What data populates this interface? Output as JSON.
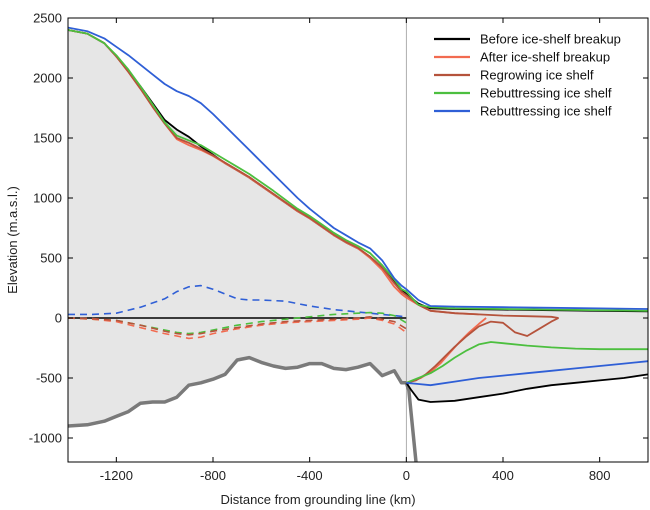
{
  "chart_data": {
    "type": "line",
    "title": "",
    "xlabel": "Distance from grounding line (km)",
    "ylabel": "Elevation (m.a.s.l.)",
    "xlim": [
      -1400,
      1000
    ],
    "ylim": [
      -1200,
      2500
    ],
    "xticks": [
      -1200,
      -800,
      -400,
      0,
      400,
      800
    ],
    "yticks": [
      -1000,
      -500,
      0,
      500,
      1000,
      1500,
      2000,
      2500
    ],
    "grid": false,
    "legend_position": "top-right",
    "colors": {
      "before": "#000000",
      "after": "#f26b50",
      "regrowing": "#b5533c",
      "rebuttressing_green": "#4cbf3f",
      "rebuttressing_blue": "#2f5fd6",
      "bed": "#7a7a7a",
      "fill": "#e6e6e6"
    },
    "legend": [
      {
        "name": "Before ice-shelf breakup",
        "color": "#000000"
      },
      {
        "name": "After ice-shelf breakup",
        "color": "#f26b50"
      },
      {
        "name": "Regrowing ice shelf",
        "color": "#b5533c"
      },
      {
        "name": "Rebuttressing ice shelf",
        "color": "#4cbf3f"
      },
      {
        "name": "Rebuttressing ice shelf",
        "color": "#2f5fd6"
      }
    ],
    "bedrock": {
      "x": [
        -1400,
        -1320,
        -1250,
        -1200,
        -1150,
        -1100,
        -1050,
        -1000,
        -950,
        -900,
        -850,
        -800,
        -750,
        -700,
        -650,
        -600,
        -550,
        -500,
        -450,
        -400,
        -350,
        -300,
        -250,
        -200,
        -150,
        -100,
        -50,
        -20,
        0
      ],
      "y": [
        -900,
        -890,
        -860,
        -820,
        -780,
        -710,
        -700,
        -700,
        -660,
        -560,
        -540,
        -510,
        -470,
        -350,
        -330,
        -370,
        -400,
        -420,
        -410,
        -380,
        -380,
        -420,
        -430,
        -410,
        -380,
        -480,
        -440,
        -540,
        -540
      ]
    },
    "bed_below_shelf": {
      "x": [
        0,
        10,
        20,
        30,
        40
      ],
      "y": [
        -540,
        -600,
        -800,
        -1000,
        -1200
      ]
    },
    "ice_surface": [
      {
        "name": "Before ice-shelf breakup",
        "color": "#000000",
        "x": [
          -1400,
          -1320,
          -1250,
          -1200,
          -1150,
          -1100,
          -1050,
          -1000,
          -950,
          -900,
          -850,
          -800,
          -750,
          -700,
          -650,
          -600,
          -550,
          -500,
          -450,
          -400,
          -350,
          -300,
          -250,
          -200,
          -150,
          -100,
          -50,
          -20,
          0,
          50,
          100,
          200,
          400,
          600,
          800,
          1000
        ],
        "y": [
          2400,
          2370,
          2290,
          2180,
          2060,
          1930,
          1790,
          1650,
          1570,
          1510,
          1430,
          1360,
          1290,
          1230,
          1170,
          1100,
          1030,
          960,
          890,
          830,
          760,
          690,
          630,
          580,
          510,
          420,
          310,
          230,
          200,
          120,
          80,
          75,
          70,
          65,
          60,
          55
        ]
      },
      {
        "name": "After ice-shelf breakup",
        "color": "#f26b50",
        "x": [
          -1400,
          -1320,
          -1250,
          -1200,
          -1150,
          -1100,
          -1050,
          -1000,
          -950,
          -900,
          -850,
          -800,
          -750,
          -700,
          -650,
          -600,
          -550,
          -500,
          -450,
          -400,
          -350,
          -300,
          -250,
          -200,
          -150,
          -100,
          -50,
          -20,
          0,
          50,
          100,
          200,
          300
        ],
        "y": [
          2400,
          2370,
          2290,
          2180,
          2050,
          1910,
          1760,
          1620,
          1490,
          1440,
          1400,
          1350,
          1290,
          1230,
          1170,
          1100,
          1030,
          960,
          890,
          830,
          760,
          690,
          630,
          580,
          500,
          400,
          260,
          200,
          170,
          110,
          60,
          40,
          30
        ]
      },
      {
        "name": "Regrowing ice shelf",
        "color": "#b5533c",
        "x": [
          -1400,
          -1320,
          -1250,
          -1200,
          -1150,
          -1100,
          -1050,
          -1000,
          -950,
          -900,
          -850,
          -800,
          -750,
          -700,
          -650,
          -600,
          -550,
          -500,
          -450,
          -400,
          -350,
          -300,
          -250,
          -200,
          -150,
          -100,
          -50,
          -20,
          0,
          50,
          100,
          200,
          300,
          400,
          500,
          600,
          630
        ],
        "y": [
          2400,
          2370,
          2290,
          2180,
          2050,
          1910,
          1760,
          1620,
          1500,
          1460,
          1410,
          1355,
          1295,
          1235,
          1175,
          1105,
          1035,
          965,
          895,
          835,
          765,
          695,
          635,
          585,
          510,
          420,
          290,
          220,
          190,
          110,
          60,
          40,
          30,
          20,
          15,
          10,
          0
        ]
      },
      {
        "name": "Rebuttressing ice shelf",
        "color": "#4cbf3f",
        "x": [
          -1400,
          -1320,
          -1250,
          -1200,
          -1150,
          -1100,
          -1050,
          -1000,
          -950,
          -900,
          -850,
          -800,
          -750,
          -700,
          -650,
          -600,
          -550,
          -500,
          -450,
          -400,
          -350,
          -300,
          -250,
          -200,
          -150,
          -100,
          -50,
          -20,
          0,
          50,
          100,
          200,
          400,
          600,
          800,
          1000
        ],
        "y": [
          2400,
          2370,
          2290,
          2190,
          2070,
          1930,
          1780,
          1630,
          1520,
          1480,
          1440,
          1380,
          1320,
          1260,
          1200,
          1130,
          1060,
          985,
          910,
          850,
          780,
          710,
          650,
          600,
          540,
          440,
          320,
          240,
          220,
          110,
          90,
          80,
          75,
          70,
          65,
          60
        ]
      },
      {
        "name": "Rebuttressing ice shelf",
        "color": "#2f5fd6",
        "x": [
          -1400,
          -1320,
          -1250,
          -1200,
          -1150,
          -1100,
          -1050,
          -1000,
          -950,
          -900,
          -850,
          -800,
          -750,
          -700,
          -650,
          -600,
          -550,
          -500,
          -450,
          -400,
          -350,
          -300,
          -250,
          -200,
          -150,
          -100,
          -50,
          -20,
          0,
          50,
          100,
          200,
          400,
          600,
          800,
          1000
        ],
        "y": [
          2420,
          2390,
          2330,
          2260,
          2190,
          2110,
          2030,
          1950,
          1890,
          1850,
          1790,
          1700,
          1600,
          1500,
          1400,
          1300,
          1200,
          1100,
          1000,
          910,
          830,
          750,
          690,
          630,
          580,
          480,
          330,
          270,
          240,
          150,
          100,
          95,
          90,
          85,
          80,
          75
        ]
      }
    ],
    "shelf_base": [
      {
        "name": "Before ice-shelf breakup",
        "color": "#000000",
        "x": [
          0,
          20,
          50,
          100,
          200,
          300,
          400,
          500,
          600,
          700,
          800,
          900,
          1000
        ],
        "y": [
          -540,
          -600,
          -680,
          -700,
          -690,
          -660,
          -630,
          -590,
          -560,
          -540,
          -520,
          -500,
          -470
        ]
      },
      {
        "name": "After ice-shelf breakup",
        "color": "#f26b50",
        "x": [
          0,
          30,
          60,
          100,
          140,
          180,
          220,
          260,
          300,
          330
        ],
        "y": [
          -540,
          -520,
          -500,
          -450,
          -380,
          -290,
          -200,
          -120,
          -50,
          0
        ]
      },
      {
        "name": "Regrowing ice shelf",
        "color": "#b5533c",
        "x": [
          0,
          40,
          80,
          120,
          160,
          200,
          250,
          300,
          350,
          400,
          450,
          500,
          550,
          600,
          630
        ],
        "y": [
          -540,
          -520,
          -470,
          -400,
          -320,
          -240,
          -150,
          -70,
          -30,
          -40,
          -120,
          -150,
          -90,
          -30,
          0
        ]
      },
      {
        "name": "Rebuttressing ice shelf",
        "color": "#4cbf3f",
        "x": [
          0,
          50,
          100,
          150,
          200,
          250,
          300,
          350,
          400,
          500,
          600,
          700,
          800,
          1000
        ],
        "y": [
          -540,
          -500,
          -460,
          -400,
          -330,
          -270,
          -220,
          -200,
          -210,
          -230,
          -245,
          -255,
          -260,
          -260
        ]
      },
      {
        "name": "Rebuttressing ice shelf",
        "color": "#2f5fd6",
        "x": [
          0,
          50,
          100,
          200,
          300,
          400,
          500,
          600,
          700,
          800,
          900,
          1000
        ],
        "y": [
          -540,
          -550,
          -560,
          -530,
          -500,
          -480,
          -460,
          -440,
          -420,
          -400,
          -380,
          -360
        ]
      }
    ],
    "dashed_lines": [
      {
        "name": "Rebuttressing ice shelf",
        "color": "#2f5fd6",
        "x": [
          -1400,
          -1300,
          -1200,
          -1100,
          -1000,
          -950,
          -900,
          -850,
          -800,
          -750,
          -700,
          -650,
          -600,
          -500,
          -400,
          -300,
          -200,
          -100,
          0
        ],
        "y": [
          30,
          30,
          40,
          90,
          160,
          220,
          260,
          270,
          240,
          200,
          160,
          150,
          150,
          140,
          100,
          70,
          50,
          30,
          10
        ]
      },
      {
        "name": "Rebuttressing ice shelf",
        "color": "#4cbf3f",
        "x": [
          -1400,
          -1300,
          -1200,
          -1100,
          -1000,
          -950,
          -900,
          -850,
          -800,
          -700,
          -600,
          -500,
          -400,
          -300,
          -200,
          -150,
          -100,
          -50,
          0
        ],
        "y": [
          0,
          -10,
          -20,
          -60,
          -100,
          -120,
          -130,
          -120,
          -100,
          -60,
          -30,
          -10,
          10,
          30,
          40,
          45,
          40,
          20,
          -40
        ]
      },
      {
        "name": "After ice-shelf breakup",
        "color": "#f26b50",
        "x": [
          -1400,
          -1300,
          -1200,
          -1100,
          -1000,
          -950,
          -900,
          -850,
          -800,
          -700,
          -600,
          -500,
          -400,
          -300,
          -200,
          -150,
          -100,
          -50,
          0
        ],
        "y": [
          0,
          -10,
          -30,
          -80,
          -130,
          -150,
          -170,
          -160,
          -130,
          -90,
          -60,
          -40,
          -30,
          -20,
          -10,
          0,
          -20,
          -50,
          -120
        ]
      },
      {
        "name": "Regrowing ice shelf",
        "color": "#b5533c",
        "x": [
          -1400,
          -1300,
          -1200,
          -1100,
          -1000,
          -950,
          -900,
          -850,
          -800,
          -700,
          -600,
          -500,
          -400,
          -300,
          -200,
          -150,
          -100,
          -50,
          0
        ],
        "y": [
          0,
          -5,
          -20,
          -60,
          -110,
          -130,
          -140,
          -130,
          -110,
          -80,
          -50,
          -30,
          -20,
          -10,
          0,
          10,
          -10,
          -30,
          -90
        ]
      }
    ],
    "sea_level_line": {
      "x": [
        -1400,
        0
      ],
      "y": [
        0,
        0
      ],
      "color": "#000000"
    }
  }
}
